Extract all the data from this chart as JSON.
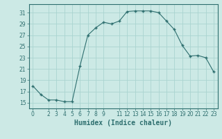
{
  "x": [
    0,
    1,
    2,
    3,
    4,
    5,
    6,
    7,
    8,
    9,
    10,
    11,
    12,
    13,
    14,
    15,
    16,
    17,
    18,
    19,
    20,
    21,
    22,
    23
  ],
  "y": [
    18.0,
    16.5,
    15.5,
    15.5,
    15.2,
    15.2,
    21.5,
    27.0,
    28.3,
    29.3,
    29.0,
    29.5,
    31.2,
    31.3,
    31.3,
    31.3,
    31.0,
    29.5,
    28.0,
    25.2,
    23.3,
    23.4,
    23.0,
    20.5
  ],
  "line_color": "#2d6e6e",
  "marker": "+",
  "marker_size": 3,
  "marker_lw": 1.0,
  "line_width": 0.8,
  "bg_color": "#cce9e5",
  "grid_color": "#aad4d0",
  "tick_color": "#2d6e6e",
  "xlabel": "Humidex (Indice chaleur)",
  "xlabel_fontsize": 7,
  "yticks": [
    15,
    17,
    19,
    21,
    23,
    25,
    27,
    29,
    31
  ],
  "ylim": [
    14.0,
    32.5
  ],
  "xlim": [
    -0.5,
    23.5
  ],
  "xticks": [
    0,
    2,
    3,
    4,
    5,
    6,
    7,
    8,
    9,
    11,
    12,
    13,
    14,
    15,
    16,
    17,
    18,
    19,
    20,
    21,
    22,
    23
  ],
  "xtick_labels": [
    "0",
    "2",
    "3",
    "4",
    "5",
    "6",
    "7",
    "8",
    "9",
    "11",
    "12",
    "13",
    "14",
    "15",
    "16",
    "17",
    "18",
    "19",
    "20",
    "21",
    "22",
    "23"
  ],
  "tick_fontsize": 5.5
}
